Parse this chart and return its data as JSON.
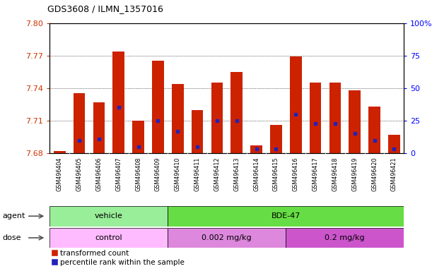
{
  "title": "GDS3608 / ILMN_1357016",
  "samples": [
    "GSM496404",
    "GSM496405",
    "GSM496406",
    "GSM496407",
    "GSM496408",
    "GSM496409",
    "GSM496410",
    "GSM496411",
    "GSM496412",
    "GSM496413",
    "GSM496414",
    "GSM496415",
    "GSM496416",
    "GSM496417",
    "GSM496418",
    "GSM496419",
    "GSM496420",
    "GSM496421"
  ],
  "bar_values": [
    7.682,
    7.735,
    7.727,
    7.774,
    7.71,
    7.765,
    7.744,
    7.72,
    7.745,
    7.755,
    7.687,
    7.706,
    7.769,
    7.745,
    7.745,
    7.738,
    7.723,
    7.697
  ],
  "percentile_rank": [
    2,
    10,
    11,
    35,
    5,
    25,
    17,
    5,
    25,
    25,
    3,
    3,
    30,
    23,
    23,
    15,
    10,
    3
  ],
  "baseline": 7.68,
  "ylim_left": [
    7.68,
    7.8
  ],
  "ylim_right": [
    0,
    100
  ],
  "yticks_left": [
    7.68,
    7.71,
    7.74,
    7.77,
    7.8
  ],
  "yticks_right": [
    0,
    25,
    50,
    75,
    100
  ],
  "bar_color": "#cc2200",
  "blue_color": "#2222bb",
  "bg_color": "#cccccc",
  "agent_groups": [
    {
      "label": "vehicle",
      "start": 0,
      "end": 5,
      "color": "#99ee99"
    },
    {
      "label": "BDE-47",
      "start": 6,
      "end": 17,
      "color": "#66dd44"
    }
  ],
  "dose_groups": [
    {
      "label": "control",
      "start": 0,
      "end": 5,
      "color": "#ffbbff"
    },
    {
      "label": "0.002 mg/kg",
      "start": 6,
      "end": 11,
      "color": "#dd88dd"
    },
    {
      "label": "0.2 mg/kg",
      "start": 12,
      "end": 17,
      "color": "#cc55cc"
    }
  ],
  "legend_items": [
    {
      "label": "transformed count",
      "color": "#cc2200"
    },
    {
      "label": "percentile rank within the sample",
      "color": "#2222bb"
    }
  ]
}
